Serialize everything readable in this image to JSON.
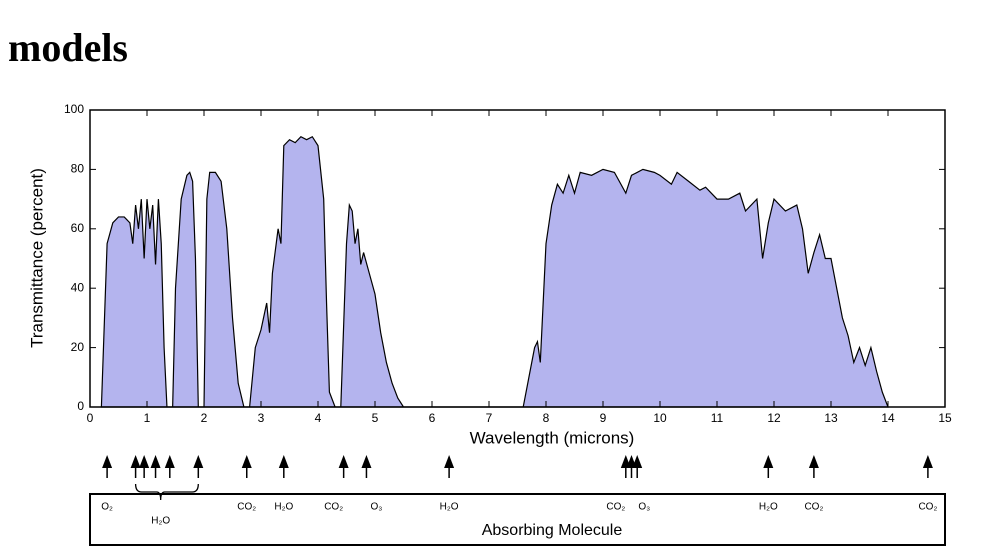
{
  "header": {
    "title": "models"
  },
  "chart_data": {
    "type": "area",
    "y_label": "Transmittance (percent)",
    "x_label": "Wavelength (microns)",
    "color": "#b4b4ee",
    "x": [
      0.2,
      0.3,
      0.4,
      0.5,
      0.6,
      0.7,
      0.75,
      0.8,
      0.85,
      0.9,
      0.95,
      1.0,
      1.05,
      1.1,
      1.15,
      1.2,
      1.25,
      1.3,
      1.35,
      1.45,
      1.5,
      1.6,
      1.7,
      1.75,
      1.8,
      1.85,
      1.9,
      2.0,
      2.05,
      2.1,
      2.2,
      2.3,
      2.4,
      2.5,
      2.6,
      2.7,
      2.8,
      2.9,
      3.0,
      3.1,
      3.15,
      3.2,
      3.3,
      3.35,
      3.4,
      3.5,
      3.6,
      3.7,
      3.8,
      3.9,
      4.0,
      4.1,
      4.15,
      4.2,
      4.3,
      4.4,
      4.5,
      4.55,
      4.6,
      4.65,
      4.7,
      4.75,
      4.8,
      4.9,
      5.0,
      5.1,
      5.2,
      5.3,
      5.4,
      5.5,
      7.6,
      7.7,
      7.8,
      7.85,
      7.9,
      8.0,
      8.1,
      8.2,
      8.3,
      8.4,
      8.5,
      8.6,
      8.8,
      9.0,
      9.2,
      9.4,
      9.5,
      9.7,
      9.9,
      10.0,
      10.2,
      10.3,
      10.5,
      10.7,
      10.8,
      11.0,
      11.2,
      11.4,
      11.5,
      11.7,
      11.8,
      11.9,
      12.0,
      12.2,
      12.4,
      12.5,
      12.6,
      12.7,
      12.8,
      12.9,
      13.0,
      13.1,
      13.2,
      13.3,
      13.4,
      13.5,
      13.6,
      13.7,
      13.8,
      13.9,
      14.0
    ],
    "values": [
      0,
      55,
      62,
      64,
      64,
      62,
      55,
      68,
      60,
      70,
      50,
      70,
      60,
      68,
      48,
      70,
      55,
      20,
      0,
      0,
      40,
      70,
      78,
      79,
      76,
      50,
      0,
      0,
      70,
      79,
      79,
      76,
      60,
      30,
      8,
      0,
      0,
      20,
      26,
      35,
      25,
      45,
      60,
      55,
      88,
      90,
      89,
      91,
      90,
      91,
      88,
      70,
      35,
      5,
      0,
      0,
      55,
      68,
      66,
      55,
      60,
      48,
      52,
      45,
      38,
      25,
      15,
      8,
      3,
      0,
      0,
      10,
      20,
      22,
      15,
      55,
      68,
      75,
      72,
      78,
      72,
      79,
      78,
      80,
      79,
      72,
      78,
      80,
      79,
      78,
      75,
      79,
      76,
      73,
      74,
      70,
      70,
      72,
      66,
      70,
      50,
      62,
      70,
      66,
      68,
      60,
      45,
      52,
      58,
      50,
      50,
      40,
      30,
      24,
      15,
      20,
      14,
      20,
      12,
      5,
      0
    ],
    "xlim": [
      0,
      15
    ],
    "ylim": [
      0,
      100
    ],
    "xticks": [
      0,
      1,
      2,
      3,
      4,
      5,
      6,
      7,
      8,
      9,
      10,
      11,
      12,
      13,
      14,
      15
    ],
    "yticks": [
      0,
      20,
      40,
      60,
      80,
      100
    ],
    "absorbers_title": "Absorbing Molecule",
    "absorbers": [
      {
        "name": "O₂",
        "x": [
          0.3
        ]
      },
      {
        "name": "H₂O",
        "x": [
          0.8,
          0.95,
          1.15,
          1.4,
          1.9
        ]
      },
      {
        "name": "CO₂",
        "x": [
          2.75
        ]
      },
      {
        "name": "H₂O",
        "x": [
          3.4
        ]
      },
      {
        "name": "CO₂",
        "x": [
          4.45
        ]
      },
      {
        "name": "O₃",
        "x": [
          4.85
        ]
      },
      {
        "name": "H₂O",
        "x": [
          6.3
        ]
      },
      {
        "name": "CO₂",
        "x": [
          9.4
        ]
      },
      {
        "name": "O₃",
        "x": [
          9.5,
          9.6
        ]
      },
      {
        "name": "H₂O",
        "x": [
          11.9
        ]
      },
      {
        "name": "CO₂",
        "x": [
          12.7
        ]
      },
      {
        "name": "CO₂",
        "x": [
          14.7
        ]
      }
    ]
  }
}
